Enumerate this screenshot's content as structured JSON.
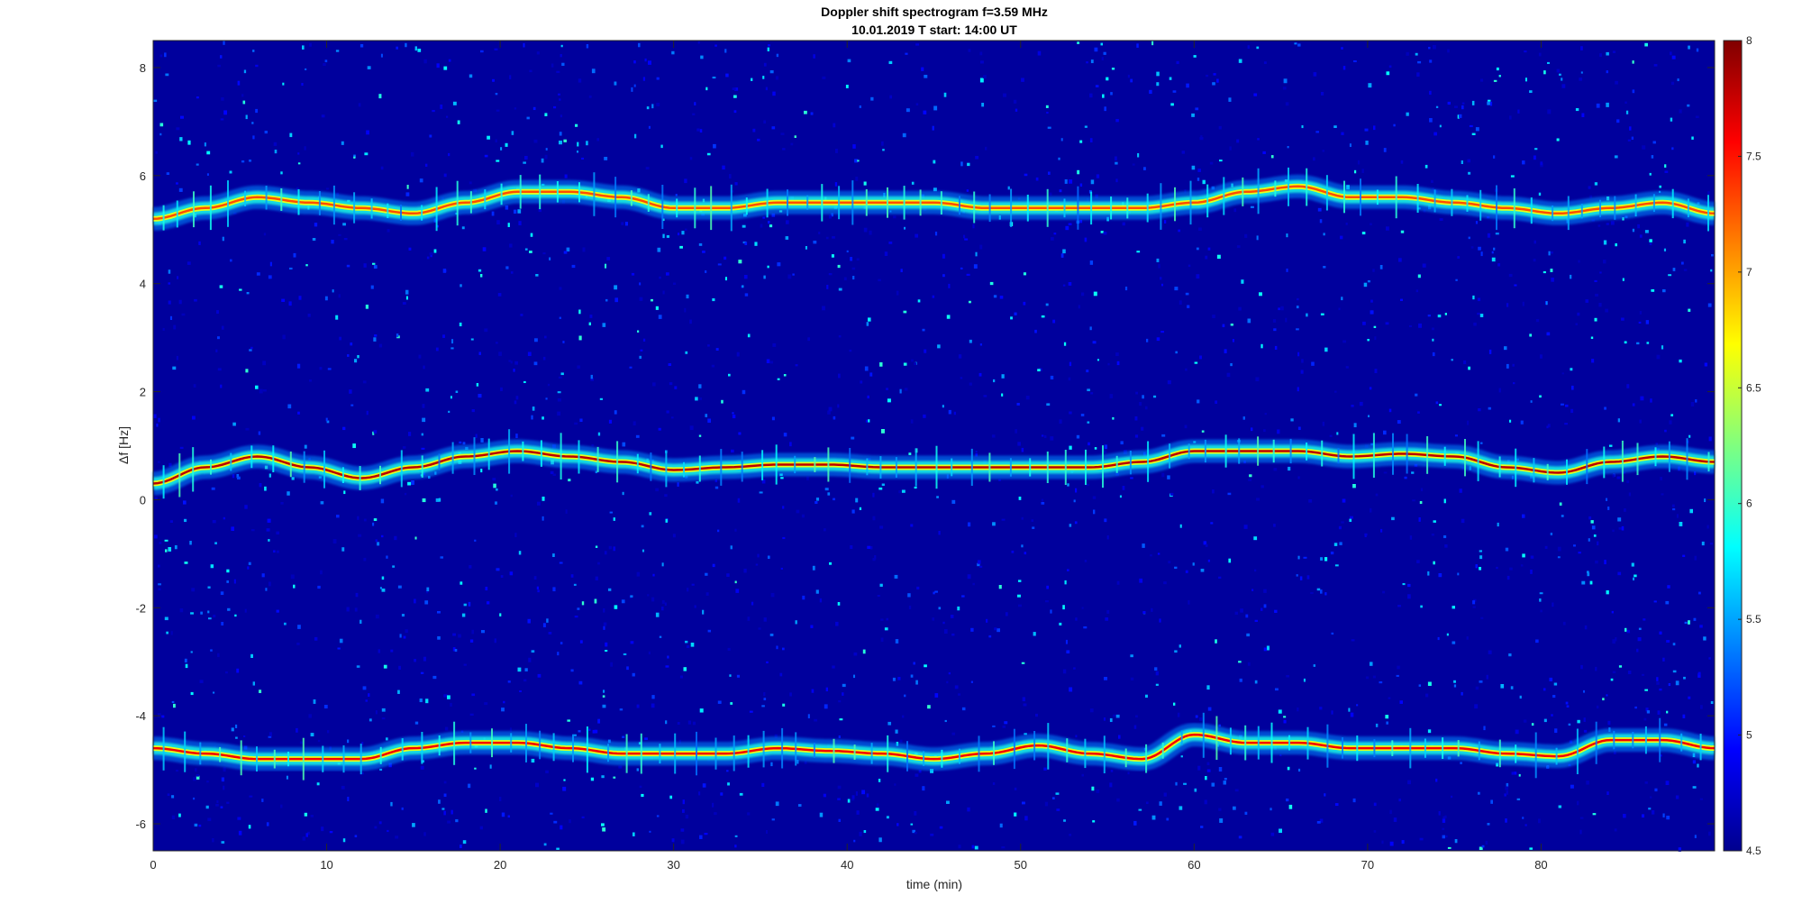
{
  "chart_data": {
    "type": "heatmap",
    "title": "Doppler shift spectrogram f=3.59 MHz",
    "subtitle": "10.01.2019   T start: 14:00 UT",
    "xlabel": "time (min)",
    "ylabel": "Δf [Hz]",
    "xlim": [
      0,
      90
    ],
    "ylim": [
      -6.5,
      8.5
    ],
    "x_ticks": [
      0,
      10,
      20,
      30,
      40,
      50,
      60,
      70,
      80
    ],
    "y_ticks": [
      -6,
      -4,
      -2,
      0,
      2,
      4,
      6,
      8
    ],
    "colormap": "jet",
    "colorbar": {
      "range": [
        4.5,
        8
      ],
      "ticks": [
        "4.5",
        "5",
        "5.5",
        "6",
        "6.5",
        "7",
        "7.5",
        "8"
      ]
    },
    "background_level": 4.6,
    "series": [
      {
        "peak_level": 7.3,
        "x": [
          0,
          3,
          6,
          9,
          12,
          15,
          18,
          21,
          24,
          27,
          30,
          33,
          36,
          39,
          42,
          45,
          48,
          51,
          54,
          57,
          60,
          63,
          66,
          69,
          72,
          75,
          78,
          81,
          84,
          87,
          90
        ],
        "freq": [
          5.2,
          5.4,
          5.6,
          5.5,
          5.4,
          5.3,
          5.5,
          5.7,
          5.7,
          5.6,
          5.4,
          5.4,
          5.5,
          5.5,
          5.5,
          5.5,
          5.4,
          5.4,
          5.4,
          5.4,
          5.5,
          5.7,
          5.8,
          5.6,
          5.6,
          5.5,
          5.4,
          5.3,
          5.4,
          5.5,
          5.3
        ]
      },
      {
        "peak_level": 7.8,
        "x": [
          0,
          3,
          6,
          9,
          12,
          15,
          18,
          21,
          24,
          27,
          30,
          33,
          36,
          39,
          42,
          45,
          48,
          51,
          54,
          57,
          60,
          63,
          66,
          69,
          72,
          75,
          78,
          81,
          84,
          87,
          90
        ],
        "freq": [
          0.3,
          0.6,
          0.8,
          0.6,
          0.4,
          0.6,
          0.8,
          0.9,
          0.8,
          0.7,
          0.55,
          0.6,
          0.65,
          0.65,
          0.6,
          0.6,
          0.6,
          0.6,
          0.6,
          0.7,
          0.9,
          0.9,
          0.9,
          0.8,
          0.85,
          0.8,
          0.6,
          0.5,
          0.7,
          0.8,
          0.7
        ]
      },
      {
        "peak_level": 7.6,
        "x": [
          0,
          3,
          6,
          9,
          12,
          15,
          18,
          21,
          24,
          27,
          30,
          33,
          36,
          39,
          42,
          45,
          48,
          51,
          54,
          57,
          60,
          63,
          66,
          69,
          72,
          75,
          78,
          81,
          84,
          87,
          90
        ],
        "freq": [
          -4.6,
          -4.7,
          -4.8,
          -4.8,
          -4.8,
          -4.6,
          -4.5,
          -4.5,
          -4.6,
          -4.7,
          -4.7,
          -4.7,
          -4.6,
          -4.65,
          -4.7,
          -4.8,
          -4.7,
          -4.55,
          -4.7,
          -4.8,
          -4.35,
          -4.5,
          -4.5,
          -4.6,
          -4.6,
          -4.6,
          -4.7,
          -4.75,
          -4.45,
          -4.45,
          -4.6
        ]
      }
    ]
  }
}
